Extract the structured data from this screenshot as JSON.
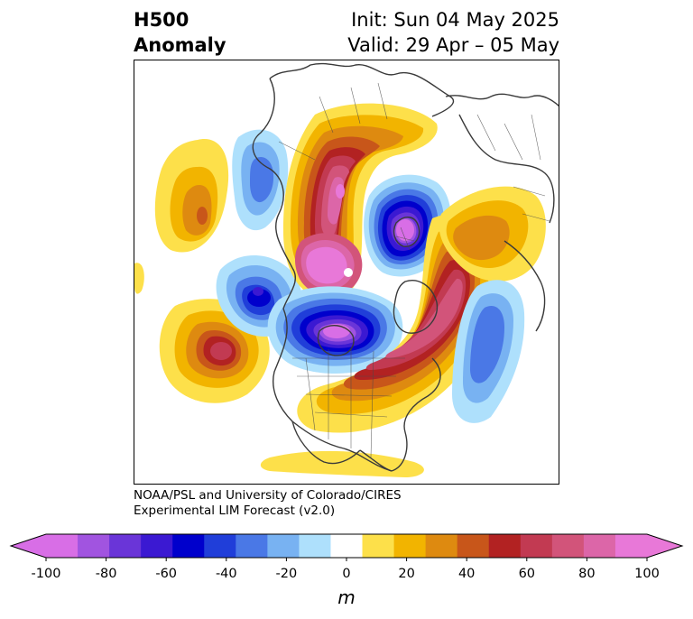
{
  "title": {
    "left_line1": "H500",
    "left_line2": "Anomaly",
    "right_line1": "Init: Sun 04 May 2025",
    "right_line2": "Valid: 29 Apr – 05 May"
  },
  "credit": {
    "line1": "NOAA/PSL and University of Colorado/CIRES",
    "line2": "Experimental LIM Forecast (v2.0)"
  },
  "colorbar": {
    "unit": "m",
    "ticks": [
      "-100",
      "-80",
      "-60",
      "-40",
      "-20",
      "0",
      "20",
      "40",
      "60",
      "80",
      "100"
    ],
    "levels": [
      -100,
      -90,
      -80,
      -70,
      -60,
      -50,
      -40,
      -30,
      -20,
      -10,
      10,
      20,
      30,
      40,
      50,
      60,
      70,
      80,
      90,
      100
    ],
    "colors": [
      "#d86ee6",
      "#a154e0",
      "#6a35d8",
      "#3b19d2",
      "#0000cc",
      "#203ed9",
      "#4a78e6",
      "#78b2f2",
      "#aee0fc",
      "#ffffff",
      "#fde04a",
      "#f2b400",
      "#de8a10",
      "#c8561a",
      "#b22222",
      "#c23a52",
      "#d2547a",
      "#dc66a8",
      "#e878d8"
    ],
    "extend_low_color": "#d86ee6",
    "extend_high_color": "#e878d8"
  },
  "map": {
    "projection": "north-polar-stereographic",
    "field": "500 hPa geopotential height anomaly",
    "features": [
      {
        "kind": "positive",
        "value": 100,
        "region": "Arctic near pole / Siberian side"
      },
      {
        "kind": "negative",
        "value": -100,
        "region": "Northern Europe / Scandinavia"
      },
      {
        "kind": "negative",
        "value": -100,
        "region": "Canada / Hudson Bay region"
      },
      {
        "kind": "positive",
        "value": 70,
        "region": "Eastern North America / NW Atlantic"
      },
      {
        "kind": "negative",
        "value": -60,
        "region": "North Pacific west"
      },
      {
        "kind": "positive",
        "value": 70,
        "region": "Central North Pacific"
      },
      {
        "kind": "negative",
        "value": -40,
        "region": "East Asia"
      },
      {
        "kind": "positive",
        "value": 40,
        "region": "Western Asia"
      },
      {
        "kind": "positive",
        "value": 50,
        "region": "Eastern Europe / Russia"
      },
      {
        "kind": "negative",
        "value": -40,
        "region": "North Atlantic east"
      }
    ]
  }
}
